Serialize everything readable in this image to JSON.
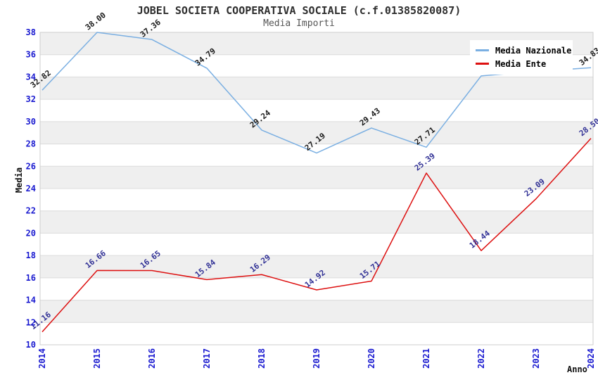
{
  "chart_data": {
    "type": "line",
    "title": "JOBEL SOCIETA COOPERATIVA SOCIALE (c.f.01385820087)",
    "subtitle": "Media Importi",
    "xlabel": "Anno",
    "ylabel": "Media",
    "categories": [
      "2014",
      "2015",
      "2016",
      "2017",
      "2018",
      "2019",
      "2020",
      "2021",
      "2022",
      "2023",
      "2024"
    ],
    "yticks": [
      10,
      12,
      14,
      16,
      18,
      20,
      22,
      24,
      26,
      28,
      30,
      32,
      34,
      36,
      38
    ],
    "ylim": [
      10,
      38
    ],
    "grid": true,
    "legend_position": "top-right",
    "series": [
      {
        "name": "Media Nazionale",
        "color": "#7aafe2",
        "label_color": "#1a1a1a",
        "values": [
          32.82,
          38.0,
          37.36,
          34.79,
          29.24,
          27.19,
          29.43,
          27.71,
          34.1,
          34.5,
          34.83
        ],
        "labels": [
          "32.82",
          "38.00",
          "37.36",
          "34.79",
          "29.24",
          "27.19",
          "29.43",
          "27.71",
          null,
          null,
          "34.83"
        ]
      },
      {
        "name": "Media Ente",
        "color": "#dd1010",
        "label_color": "#323296",
        "values": [
          11.16,
          16.66,
          16.65,
          15.84,
          16.29,
          14.92,
          15.71,
          25.39,
          18.44,
          23.09,
          28.5
        ],
        "labels": [
          "11.16",
          "16.66",
          "16.65",
          "15.84",
          "16.29",
          "14.92",
          "15.71",
          "25.39",
          "18.44",
          "23.09",
          "28.50"
        ]
      }
    ],
    "colors": {
      "tick_label": "#1a1ad0",
      "band_fill": "#efefef",
      "grid_line": "#dcdcdc",
      "plot_border": "#cccccc"
    }
  }
}
